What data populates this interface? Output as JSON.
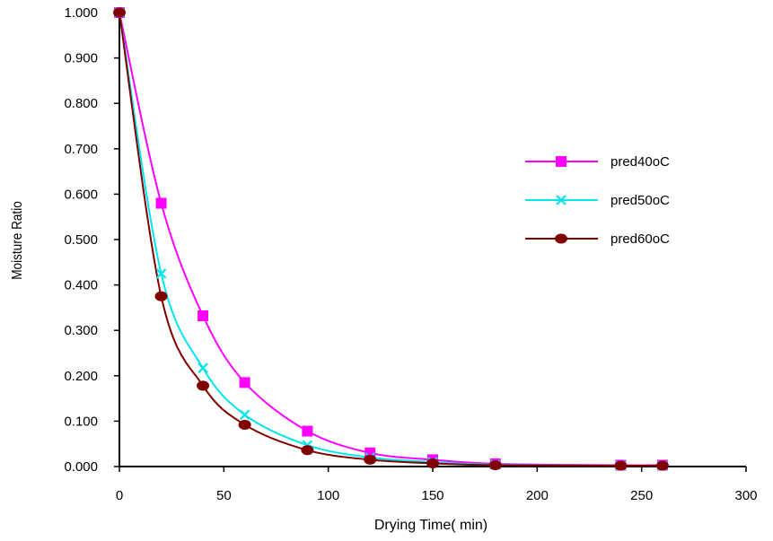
{
  "chart_data": {
    "type": "line",
    "title": "",
    "xlabel": "Drying Time( min)",
    "ylabel": "Moisture Ratio",
    "xlim": [
      0,
      300
    ],
    "ylim": [
      0,
      1
    ],
    "x_ticks": [
      "0",
      "50",
      "100",
      "150",
      "200",
      "250",
      "300"
    ],
    "x_tick_values": [
      0,
      50,
      100,
      150,
      200,
      250,
      300
    ],
    "y_ticks": [
      "0.000",
      "0.100",
      "0.200",
      "0.300",
      "0.400",
      "0.500",
      "0.600",
      "0.700",
      "0.800",
      "0.900",
      "1.000"
    ],
    "y_tick_values": [
      0,
      0.1,
      0.2,
      0.3,
      0.4,
      0.5,
      0.6,
      0.7,
      0.8,
      0.9,
      1.0
    ],
    "grid": false,
    "legend_position": "right",
    "x": [
      0,
      20,
      40,
      60,
      90,
      120,
      150,
      180,
      240,
      260
    ],
    "series": [
      {
        "name": "pred40oC",
        "color": "#ff00ff",
        "marker": "square",
        "values": [
          1.0,
          0.58,
          0.332,
          0.185,
          0.078,
          0.03,
          0.015,
          0.006,
          0.003,
          0.003
        ]
      },
      {
        "name": "pred50oC",
        "color": "#00e5ee",
        "marker": "x",
        "values": [
          1.0,
          0.425,
          0.217,
          0.114,
          0.047,
          0.02,
          0.01,
          0.004,
          0.002,
          0.002
        ]
      },
      {
        "name": "pred60oC",
        "color": "#800000",
        "marker": "circle",
        "values": [
          1.0,
          0.375,
          0.178,
          0.092,
          0.036,
          0.015,
          0.007,
          0.003,
          0.002,
          0.002
        ]
      }
    ]
  }
}
